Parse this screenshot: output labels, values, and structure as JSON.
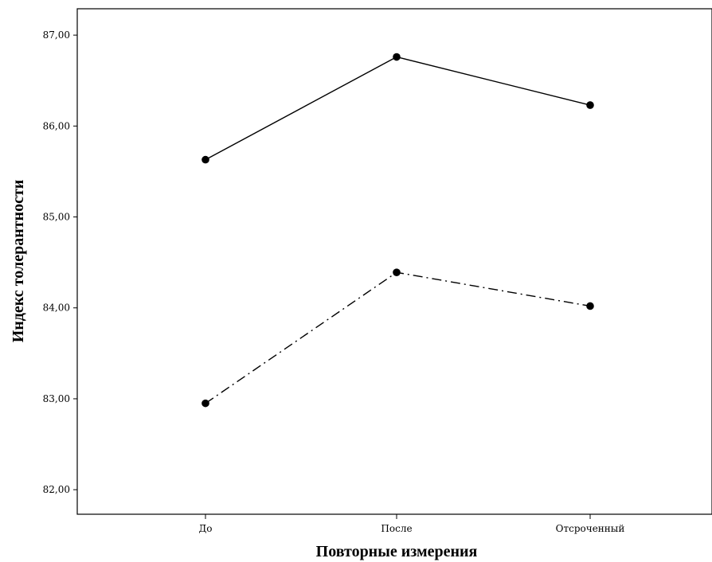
{
  "chart_data": {
    "type": "line",
    "title": "",
    "xlabel": "Повторные измерения",
    "ylabel": "Индекс толерантности",
    "categories": [
      "До",
      "После",
      "Отсроченный"
    ],
    "y_ticks": [
      "82,00",
      "83,00",
      "84,00",
      "85,00",
      "86,00",
      "87,00"
    ],
    "y_tick_values": [
      82,
      83,
      84,
      85,
      86,
      87
    ],
    "ylim": [
      81.73,
      87.29
    ],
    "grid": false,
    "legend": "none",
    "series": [
      {
        "style": "solid",
        "color": "#000000",
        "values": [
          85.63,
          86.76,
          86.23
        ]
      },
      {
        "style": "dash-dot",
        "color": "#000000",
        "values": [
          82.95,
          84.39,
          84.02
        ]
      }
    ]
  }
}
